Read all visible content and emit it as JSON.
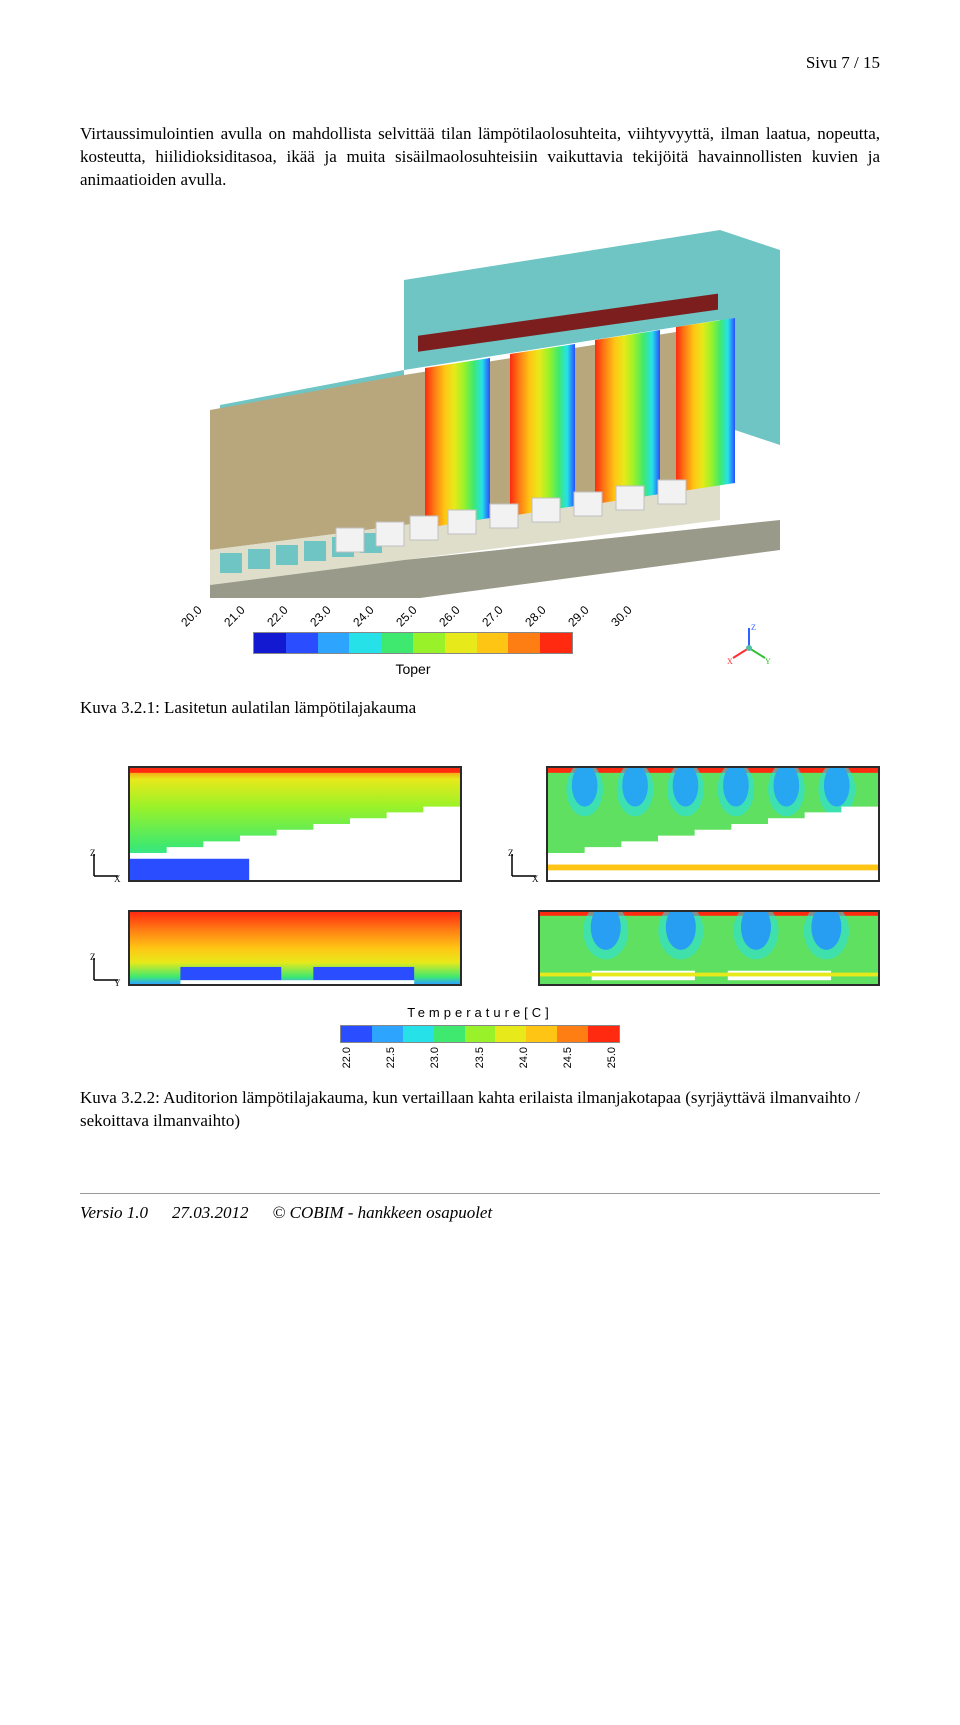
{
  "page": {
    "num_label": "Sivu 7 / 15"
  },
  "body_text": "Virtaussimulointien avulla on mahdollista selvittää tilan lämpötilaolosuhteita, viihtyvyyttä, ilman laatua, nopeutta, kosteutta, hiilidioksiditasoa, ikää ja muita sisäilmaolosuhteisiin vaikuttavia tekijöitä havainnollisten kuvien ja animaatioiden avulla.",
  "fig1": {
    "type": "3d_cfd_section_rendering",
    "caption": "Kuva 3.2.1: Lasitetun aulatilan lämpötilajakauma",
    "colorbar": {
      "variable_label": "Toper",
      "ticks": [
        "20.0",
        "21.0",
        "22.0",
        "23.0",
        "24.0",
        "25.0",
        "26.0",
        "27.0",
        "28.0",
        "29.0",
        "30.0"
      ],
      "colors": [
        "#1219d0",
        "#2a4eff",
        "#2da5ff",
        "#26e1e8",
        "#3fe96f",
        "#99f229",
        "#e7e91a",
        "#ffc514",
        "#ff7e14",
        "#ff2a10"
      ]
    },
    "axis_indicator": {
      "labels": [
        "X",
        "Y",
        "Z"
      ],
      "colors": [
        "#ff3030",
        "#30c030",
        "#3060ff"
      ]
    },
    "scene": {
      "wall_color": "#6fc4c4",
      "structure_color": "#b8a77d",
      "floor_color": "#9a9a8a",
      "box_color": "#f2f2f2",
      "slice_gradients": [
        [
          "#ff2a10",
          "#ff7e14",
          "#ffc514",
          "#e7e91a",
          "#99f229",
          "#3fe96f",
          "#26e1e8",
          "#2da5ff",
          "#2a4eff"
        ],
        [
          "#ff2a10",
          "#ff7e14",
          "#ffc514",
          "#e7e91a",
          "#99f229",
          "#3fe96f",
          "#26e1e8",
          "#2da5ff"
        ],
        [
          "#ff2a10",
          "#ff7e14",
          "#ffc514",
          "#99f229",
          "#3fe96f",
          "#26e1e8",
          "#2da5ff",
          "#2a4eff"
        ],
        [
          "#ff2a10",
          "#ff7e14",
          "#ffc514",
          "#e7e91a",
          "#99f229",
          "#3fe96f",
          "#26e1e8",
          "#2da5ff"
        ]
      ],
      "num_slices": 4
    }
  },
  "fig2": {
    "type": "cfd_2d_slice_comparison",
    "caption": "Kuva 3.2.2: Auditorion lämpötilajakauma, kun vertaillaan kahta erilaista ilmanjakotapaa (syrjäyttävä ilmanvaihto / sekoittava ilmanvaihto)",
    "colorbar": {
      "title": "Temperature[C]",
      "ticks": [
        "22.0",
        "22.5",
        "23.0",
        "23.5",
        "24.0",
        "24.5",
        "25.0"
      ],
      "colors": [
        "#2a4eff",
        "#2da5ff",
        "#26e1e8",
        "#3fe96f",
        "#99f229",
        "#e7e91a",
        "#ffc514",
        "#ff7e14",
        "#ff2a10"
      ]
    },
    "panels": {
      "top_left": {
        "axes": [
          "Z",
          "X"
        ],
        "style": "auditorium_section",
        "dominant": "green_yellow_stratified",
        "jets": "none"
      },
      "top_right": {
        "axes": [
          "Z",
          "X"
        ],
        "style": "auditorium_section",
        "dominant": "green_with_blue_ceiling_jets",
        "jets": "ceiling_6"
      },
      "bot_left": {
        "axes": [
          "Z",
          "Y"
        ],
        "style": "long_section",
        "dominant": "orange_red_upper_blue_floor",
        "jets": "none"
      },
      "bot_right": {
        "axes": [
          "Z",
          "Y"
        ],
        "style": "long_section",
        "dominant": "green_with_blue_ceiling_jets",
        "jets": "ceiling_4"
      }
    },
    "background_color": "#ffffff",
    "border_color": "#2b2b2b"
  },
  "footer": {
    "version": "Versio 1.0",
    "date": "27.03.2012",
    "copyright": "© COBIM - hankkeen osapuolet"
  }
}
